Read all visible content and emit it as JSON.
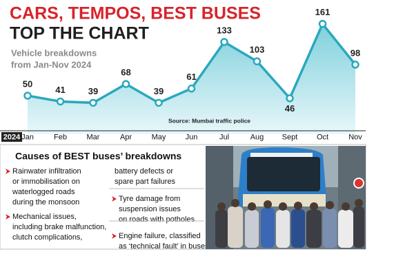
{
  "chart_data": {
    "type": "area",
    "title": [
      "CARS, TEMPOS, BEST BUSES",
      "TOP THE CHART"
    ],
    "subtitle": [
      "Vehicle breakdowns",
      "from Jan-Nov 2024"
    ],
    "x_label": "2024",
    "categories": [
      "Jan",
      "Feb",
      "Mar",
      "Apr",
      "May",
      "Jun",
      "Jul",
      "Aug",
      "Sept",
      "Oct",
      "Nov"
    ],
    "values": [
      50,
      41,
      39,
      68,
      39,
      61,
      133,
      103,
      46,
      161,
      98
    ],
    "color": "#2aa8bd",
    "source": "Source: Mumbai traffic police"
  },
  "panel": {
    "heading": "Causes of BEST buses’ breakdowns",
    "left_bullets": [
      [
        "Rainwater infiltration",
        "or immobilisation on",
        "waterlogged roads",
        "during the monsoon"
      ],
      [
        "Mechanical issues,",
        "including brake malfunction,",
        "clutch complications,"
      ]
    ],
    "continuation": [
      "battery defects or",
      "spare part failures"
    ],
    "right_bullets": [
      [
        "Tyre damage from",
        "suspension issues",
        "on roads with potholes"
      ],
      [
        "Engine failure, classified",
        "as ‘technical fault’ in buses"
      ]
    ]
  }
}
